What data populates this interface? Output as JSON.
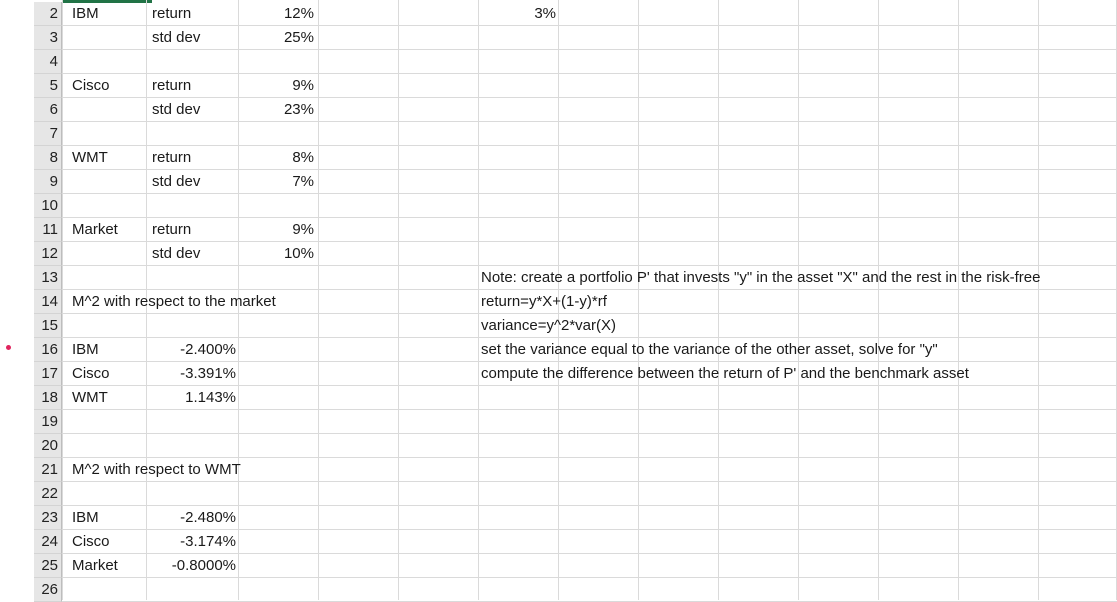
{
  "rows": [
    {
      "num": "2",
      "a": "IBM",
      "b": "return",
      "c": "12%",
      "g": "3%"
    },
    {
      "num": "3",
      "a": "",
      "b": "std dev",
      "c": "25%",
      "g": ""
    },
    {
      "num": "4",
      "a": "",
      "b": "",
      "c": "",
      "g": ""
    },
    {
      "num": "5",
      "a": "Cisco",
      "b": "return",
      "c": "9%",
      "g": ""
    },
    {
      "num": "6",
      "a": "",
      "b": "std dev",
      "c": "23%",
      "g": ""
    },
    {
      "num": "7",
      "a": "",
      "b": "",
      "c": "",
      "g": ""
    },
    {
      "num": "8",
      "a": "WMT",
      "b": "return",
      "c": "8%",
      "g": ""
    },
    {
      "num": "9",
      "a": "",
      "b": "std dev",
      "c": "7%",
      "g": ""
    },
    {
      "num": "10",
      "a": "",
      "b": "",
      "c": "",
      "g": ""
    },
    {
      "num": "11",
      "a": "Market",
      "b": "return",
      "c": "9%",
      "g": ""
    },
    {
      "num": "12",
      "a": "",
      "b": "std dev",
      "c": "10%",
      "g": ""
    },
    {
      "num": "13",
      "a": "",
      "b": "",
      "c": "",
      "g": ""
    },
    {
      "num": "14",
      "a": "M^2 with respect to the market",
      "b": "",
      "c": "",
      "g": ""
    },
    {
      "num": "15",
      "a": "",
      "b": "",
      "c": "",
      "g": ""
    },
    {
      "num": "16",
      "a": "IBM",
      "b": "-2.400%",
      "c": "",
      "g": ""
    },
    {
      "num": "17",
      "a": "Cisco",
      "b": "-3.391%",
      "c": "",
      "g": ""
    },
    {
      "num": "18",
      "a": "WMT",
      "b": "1.143%",
      "c": "",
      "g": ""
    },
    {
      "num": "19",
      "a": "",
      "b": "",
      "c": "",
      "g": ""
    },
    {
      "num": "20",
      "a": "",
      "b": "",
      "c": "",
      "g": ""
    },
    {
      "num": "21",
      "a": "M^2 with respect to WMT",
      "b": "",
      "c": "",
      "g": ""
    },
    {
      "num": "22",
      "a": "",
      "b": "",
      "c": "",
      "g": ""
    },
    {
      "num": "23",
      "a": "IBM",
      "b": "-2.480%",
      "c": "",
      "g": ""
    },
    {
      "num": "24",
      "a": "Cisco",
      "b": "-3.174%",
      "c": "",
      "g": ""
    },
    {
      "num": "25",
      "a": "Market",
      "b": "-0.8000%",
      "c": "",
      "g": ""
    },
    {
      "num": "26",
      "a": "",
      "b": "",
      "c": "",
      "g": ""
    }
  ],
  "notes": [
    "Note: create a portfolio P' that invests \"y\"  in the asset \"X\" and the rest in the risk-free",
    "return=y*X+(1-y)*rf",
    "variance=y^2*var(X)",
    "set the variance equal to the variance of the other asset, solve for \"y\"",
    "compute the difference between the return of P' and the benchmark asset"
  ]
}
